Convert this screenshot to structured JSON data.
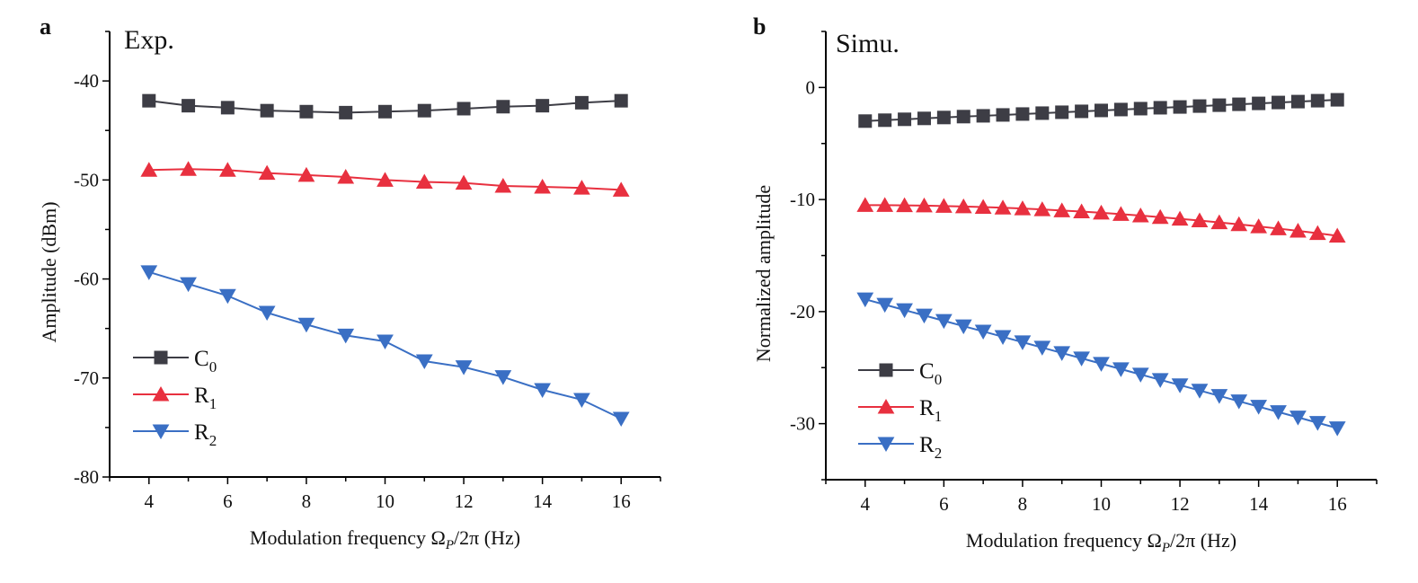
{
  "chart_data": [
    {
      "type": "line",
      "panel_label": "a",
      "title": "Exp.",
      "xlabel": {
        "main": "Modulation frequency Ω",
        "sub": "P",
        "rest": "/2π (Hz)"
      },
      "ylabel": "Amplitude (dBm)",
      "xlim": [
        3,
        17
      ],
      "ylim": [
        -80,
        -35
      ],
      "xticks": [
        4,
        6,
        8,
        10,
        12,
        14,
        16
      ],
      "yticks": [
        -40,
        -50,
        -60,
        -70,
        -80
      ],
      "grid": false,
      "legend_position": "bottom-left",
      "x": [
        4,
        5,
        6,
        7,
        8,
        9,
        10,
        11,
        12,
        13,
        14,
        15,
        16
      ],
      "series": [
        {
          "name": "C",
          "sub": "0",
          "color": "#3d3d45",
          "marker": "square",
          "values": [
            -42.0,
            -42.5,
            -42.7,
            -43.0,
            -43.1,
            -43.2,
            -43.1,
            -43.0,
            -42.8,
            -42.6,
            -42.5,
            -42.2,
            -42.0
          ]
        },
        {
          "name": "R",
          "sub": "1",
          "color": "#e8303f",
          "marker": "triangle-up",
          "values": [
            -49.0,
            -48.9,
            -49.0,
            -49.3,
            -49.5,
            -49.7,
            -50.0,
            -50.2,
            -50.3,
            -50.6,
            -50.7,
            -50.8,
            -51.0
          ]
        },
        {
          "name": "R",
          "sub": "2",
          "color": "#3a6fc4",
          "marker": "triangle-down",
          "values": [
            -59.3,
            -60.5,
            -61.7,
            -63.4,
            -64.6,
            -65.7,
            -66.3,
            -68.3,
            -68.9,
            -69.9,
            -71.2,
            -72.2,
            -74.1
          ]
        }
      ]
    },
    {
      "type": "line",
      "panel_label": "b",
      "title": "Simu.",
      "xlabel": {
        "main": "Modulation frequency Ω",
        "sub": "P",
        "rest": "/2π (Hz)"
      },
      "ylabel": "Normalized amplitude",
      "xlim": [
        3,
        17
      ],
      "ylim": [
        -35,
        5
      ],
      "xticks": [
        4,
        6,
        8,
        10,
        12,
        14,
        16
      ],
      "yticks": [
        0,
        -10,
        -20,
        -30
      ],
      "grid": false,
      "legend_position": "bottom-left",
      "x": [
        4,
        4.5,
        5,
        5.5,
        6,
        6.5,
        7,
        7.5,
        8,
        8.5,
        9,
        9.5,
        10,
        10.5,
        11,
        11.5,
        12,
        12.5,
        13,
        13.5,
        14,
        14.5,
        15,
        15.5,
        16
      ],
      "series": [
        {
          "name": "C",
          "sub": "0",
          "color": "#3d3d45",
          "marker": "square",
          "values": [
            -3.0,
            -2.92,
            -2.84,
            -2.76,
            -2.68,
            -2.6,
            -2.53,
            -2.45,
            -2.37,
            -2.29,
            -2.21,
            -2.13,
            -2.05,
            -1.97,
            -1.89,
            -1.81,
            -1.74,
            -1.66,
            -1.58,
            -1.5,
            -1.42,
            -1.34,
            -1.26,
            -1.18,
            -1.1
          ]
        },
        {
          "name": "R",
          "sub": "1",
          "color": "#e8303f",
          "marker": "triangle-up",
          "values": [
            -10.5,
            -10.5,
            -10.52,
            -10.54,
            -10.58,
            -10.62,
            -10.67,
            -10.73,
            -10.8,
            -10.88,
            -10.98,
            -11.07,
            -11.18,
            -11.3,
            -11.43,
            -11.57,
            -11.72,
            -11.87,
            -12.04,
            -12.21,
            -12.4,
            -12.59,
            -12.8,
            -13.01,
            -13.24
          ]
        },
        {
          "name": "R",
          "sub": "2",
          "color": "#3a6fc4",
          "marker": "triangle-down",
          "values": [
            -18.9,
            -19.38,
            -19.86,
            -20.34,
            -20.82,
            -21.3,
            -21.77,
            -22.25,
            -22.73,
            -23.21,
            -23.69,
            -24.17,
            -24.65,
            -25.13,
            -25.61,
            -26.09,
            -26.56,
            -27.04,
            -27.52,
            -28.0,
            -28.48,
            -28.96,
            -29.44,
            -29.92,
            -30.4
          ]
        }
      ]
    }
  ]
}
